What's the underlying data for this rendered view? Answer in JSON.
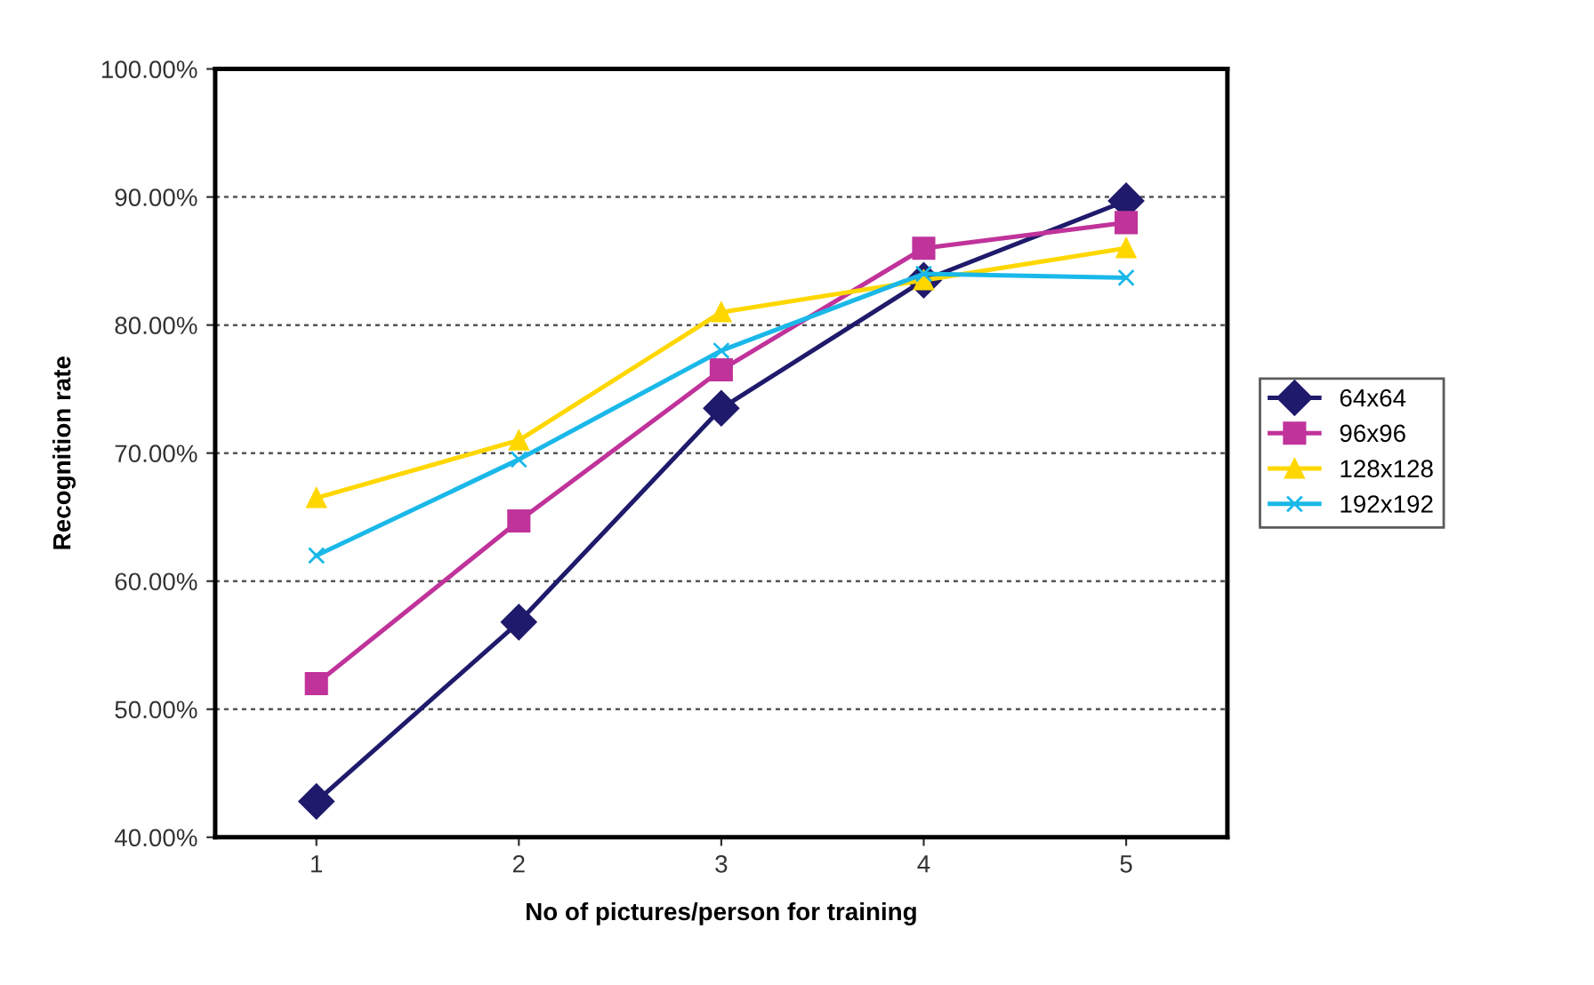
{
  "chart_data": {
    "type": "line",
    "xlabel": "No of pictures/person for training",
    "ylabel": "Recognition rate",
    "categories": [
      "1",
      "2",
      "3",
      "4",
      "5"
    ],
    "series": [
      {
        "name": "64x64",
        "color": "#1f1a6b",
        "marker": "diamond",
        "values": [
          42.8,
          56.8,
          73.5,
          83.5,
          89.7
        ]
      },
      {
        "name": "96x96",
        "color": "#c0339a",
        "marker": "square",
        "values": [
          52.0,
          64.7,
          76.5,
          86.0,
          88.0
        ]
      },
      {
        "name": "128x128",
        "color": "#ffd700",
        "marker": "triangle",
        "values": [
          66.5,
          71.0,
          81.0,
          83.5,
          86.0
        ]
      },
      {
        "name": "192x192",
        "color": "#1ab8e8",
        "marker": "cross",
        "values": [
          62.0,
          69.5,
          78.0,
          84.0,
          83.7
        ]
      }
    ],
    "ylim": [
      40,
      100
    ],
    "yticks": [
      {
        "value": 40,
        "label": "40.00%"
      },
      {
        "value": 50,
        "label": "50.00%"
      },
      {
        "value": 60,
        "label": "60.00%"
      },
      {
        "value": 70,
        "label": "70.00%"
      },
      {
        "value": 80,
        "label": "80.00%"
      },
      {
        "value": 90,
        "label": "90.00%"
      },
      {
        "value": 100,
        "label": "100.00%"
      }
    ],
    "grid": "y",
    "legend": "right",
    "line_style": "solid"
  }
}
